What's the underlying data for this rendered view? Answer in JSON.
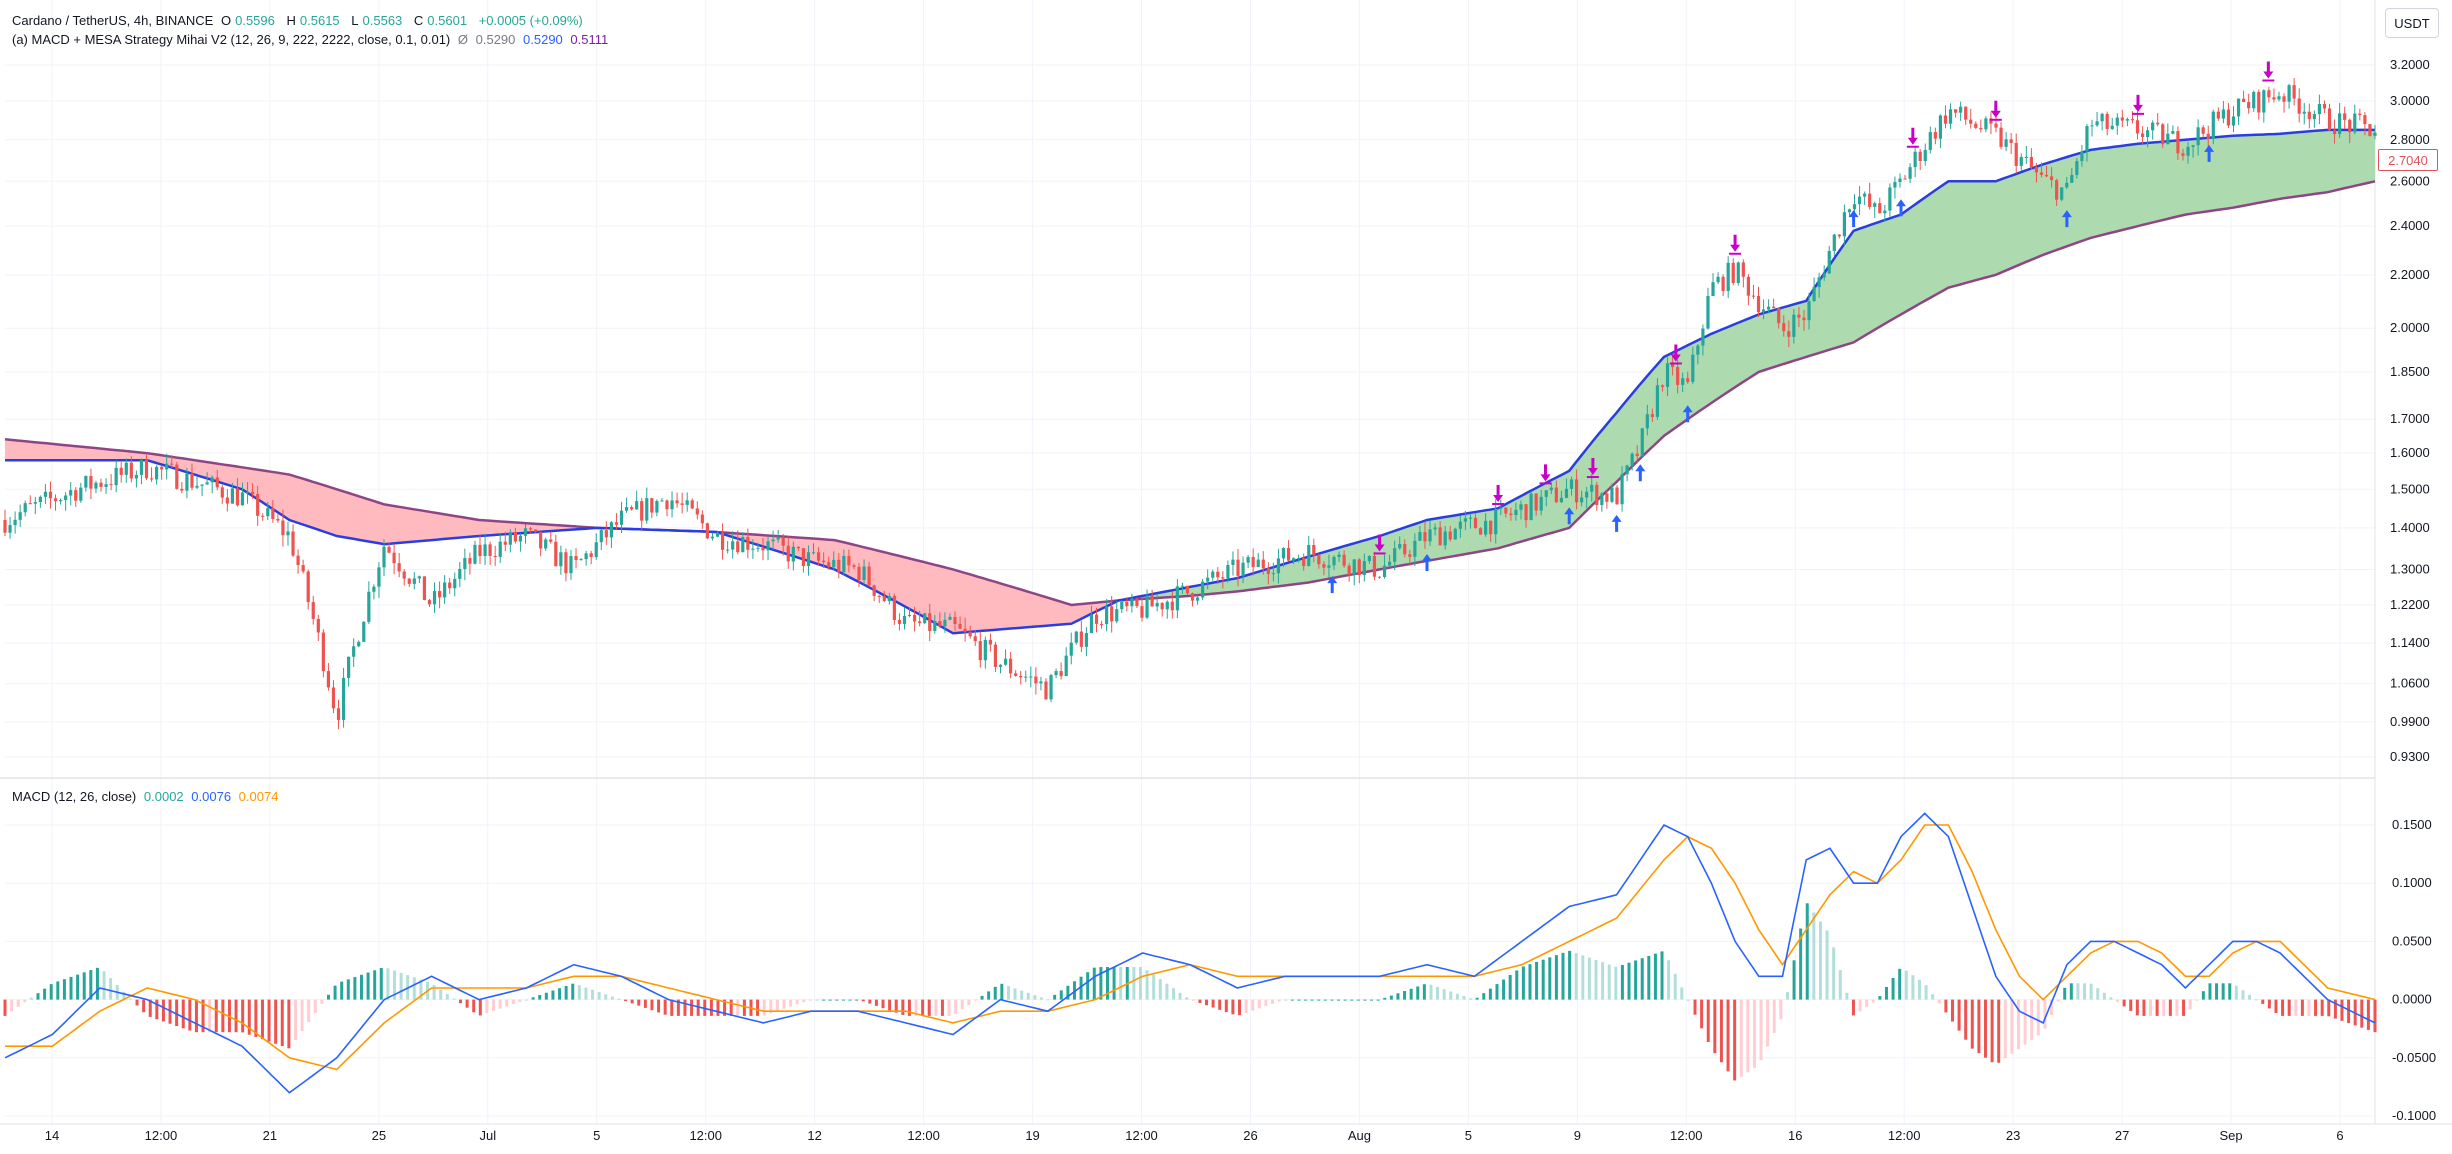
{
  "legend": {
    "symbol": "Cardano / TetherUS, 4h, BINANCE",
    "open_label": "O",
    "open": "0.5596",
    "high_label": "H",
    "high": "0.5615",
    "low_label": "L",
    "low": "0.5563",
    "close_label": "C",
    "close": "0.5601",
    "change": "+0.0005 (+0.09%)",
    "indicator": "(a) MACD + MESA Strategy Mihai V2 (12, 26, 9, 222, 2222, close, 0.1, 0.01)",
    "indicator_values": [
      "0.5290",
      "0.5290",
      "0.5111"
    ],
    "indicator_symbol": "Ø",
    "macd_title": "MACD (12, 26, close)",
    "macd_values": [
      "0.0002",
      "0.0076",
      "0.0074"
    ]
  },
  "currency_button": "USDT",
  "last_price_tag": "2.7040",
  "colors": {
    "up": "#26a69a",
    "down": "#ef5350",
    "mama": "#2a3de0",
    "fama": "#8e4585",
    "cloud_bull": "#a5d6a7",
    "cloud_bear": "#ffb3b8",
    "macd_line": "#2962ff",
    "signal_line": "#ff9800",
    "buy_arrow": "#2962ff",
    "sell_arrow": "#c800c8"
  },
  "chart_data": [
    {
      "type": "candlestick",
      "y_axis_labels": [
        "3.2000",
        "3.0000",
        "2.8000",
        "2.6000",
        "2.4000",
        "2.2000",
        "2.0000",
        "1.8500",
        "1.7000",
        "1.6000",
        "1.5000",
        "1.4000",
        "1.3000",
        "1.2200",
        "1.1400",
        "1.0600",
        "0.9900",
        "0.9300"
      ],
      "y_axis_scale": "log",
      "x_axis_labels": [
        "14",
        "12:00",
        "21",
        "25",
        "Jul",
        "5",
        "12:00",
        "12",
        "12:00",
        "19",
        "12:00",
        "26",
        "Aug",
        "5",
        "9",
        "12:00",
        "16",
        "12:00",
        "23",
        "27",
        "Sep",
        "6"
      ],
      "price_path": {
        "x": [
          0,
          0.03,
          0.06,
          0.1,
          0.12,
          0.14,
          0.16,
          0.18,
          0.2,
          0.22,
          0.24,
          0.26,
          0.28,
          0.3,
          0.32,
          0.34,
          0.36,
          0.38,
          0.4,
          0.42,
          0.44,
          0.46,
          0.48,
          0.5,
          0.52,
          0.55,
          0.58,
          0.6,
          0.63,
          0.66,
          0.68,
          0.69,
          0.7,
          0.71,
          0.72,
          0.73,
          0.74,
          0.75,
          0.76,
          0.78,
          0.79,
          0.8,
          0.82,
          0.84,
          0.86,
          0.87,
          0.88,
          0.9,
          0.92,
          0.94,
          0.96,
          0.98,
          1
        ],
        "y": [
          1.42,
          1.5,
          1.56,
          1.48,
          1.38,
          1.0,
          1.36,
          1.22,
          1.34,
          1.38,
          1.3,
          1.42,
          1.48,
          1.38,
          1.36,
          1.32,
          1.3,
          1.18,
          1.17,
          1.1,
          1.05,
          1.2,
          1.21,
          1.25,
          1.3,
          1.34,
          1.3,
          1.38,
          1.42,
          1.5,
          1.48,
          1.62,
          1.85,
          1.8,
          2.15,
          2.22,
          2.1,
          2.0,
          2.05,
          2.55,
          2.45,
          2.6,
          2.95,
          2.82,
          2.6,
          2.55,
          2.88,
          2.85,
          2.78,
          2.95,
          3.05,
          2.9,
          2.85
        ]
      },
      "mama": {
        "x": [
          0,
          0.06,
          0.1,
          0.12,
          0.14,
          0.16,
          0.2,
          0.25,
          0.3,
          0.35,
          0.4,
          0.45,
          0.47,
          0.5,
          0.52,
          0.55,
          0.58,
          0.6,
          0.63,
          0.66,
          0.68,
          0.7,
          0.72,
          0.74,
          0.76,
          0.78,
          0.8,
          0.82,
          0.84,
          0.86,
          0.88,
          0.9,
          0.92,
          0.94,
          0.96,
          0.98,
          1
        ],
        "y": [
          1.58,
          1.58,
          1.5,
          1.42,
          1.38,
          1.36,
          1.38,
          1.4,
          1.39,
          1.3,
          1.16,
          1.18,
          1.23,
          1.26,
          1.28,
          1.33,
          1.38,
          1.42,
          1.45,
          1.55,
          1.72,
          1.9,
          1.98,
          2.05,
          2.1,
          2.38,
          2.45,
          2.6,
          2.6,
          2.68,
          2.75,
          2.78,
          2.8,
          2.82,
          2.83,
          2.85,
          2.85
        ]
      },
      "fama": {
        "x": [
          0,
          0.06,
          0.1,
          0.12,
          0.14,
          0.16,
          0.2,
          0.25,
          0.3,
          0.35,
          0.4,
          0.45,
          0.47,
          0.5,
          0.52,
          0.55,
          0.58,
          0.6,
          0.63,
          0.66,
          0.68,
          0.7,
          0.72,
          0.74,
          0.76,
          0.78,
          0.8,
          0.82,
          0.84,
          0.86,
          0.88,
          0.9,
          0.92,
          0.94,
          0.96,
          0.98,
          1
        ],
        "y": [
          1.64,
          1.6,
          1.56,
          1.54,
          1.5,
          1.46,
          1.42,
          1.4,
          1.39,
          1.37,
          1.3,
          1.22,
          1.23,
          1.24,
          1.25,
          1.27,
          1.3,
          1.32,
          1.35,
          1.4,
          1.52,
          1.65,
          1.75,
          1.85,
          1.9,
          1.95,
          2.05,
          2.15,
          2.2,
          2.28,
          2.35,
          2.4,
          2.45,
          2.48,
          2.52,
          2.55,
          2.6
        ]
      },
      "buy_signals_x": [
        0.56,
        0.6,
        0.66,
        0.68,
        0.69,
        0.71,
        0.78,
        0.8,
        0.87,
        0.93
      ],
      "sell_signals_x": [
        0.58,
        0.63,
        0.65,
        0.67,
        0.705,
        0.73,
        0.805,
        0.84,
        0.9,
        0.955
      ]
    },
    {
      "type": "line",
      "title": "MACD (12, 26, close)",
      "y_axis_labels": [
        "0.1500",
        "0.1000",
        "0.0500",
        "0.0000",
        "-0.0500",
        "-0.1000"
      ],
      "ylim": [
        -0.1,
        0.17
      ],
      "x": [
        0,
        0.02,
        0.04,
        0.06,
        0.08,
        0.1,
        0.12,
        0.14,
        0.16,
        0.18,
        0.2,
        0.22,
        0.24,
        0.26,
        0.28,
        0.3,
        0.32,
        0.34,
        0.36,
        0.38,
        0.4,
        0.42,
        0.44,
        0.46,
        0.48,
        0.5,
        0.52,
        0.54,
        0.56,
        0.58,
        0.6,
        0.62,
        0.64,
        0.66,
        0.68,
        0.7,
        0.71,
        0.72,
        0.73,
        0.74,
        0.75,
        0.76,
        0.77,
        0.78,
        0.79,
        0.8,
        0.81,
        0.82,
        0.83,
        0.84,
        0.85,
        0.86,
        0.87,
        0.88,
        0.89,
        0.9,
        0.91,
        0.92,
        0.93,
        0.94,
        0.95,
        0.96,
        0.97,
        0.98,
        1
      ],
      "series": [
        {
          "values": [
            -0.05,
            -0.03,
            0.01,
            0.0,
            -0.02,
            -0.04,
            -0.08,
            -0.05,
            0.0,
            0.02,
            0.0,
            0.01,
            0.03,
            0.02,
            0.0,
            -0.01,
            -0.02,
            -0.01,
            -0.01,
            -0.02,
            -0.03,
            0.0,
            -0.01,
            0.02,
            0.04,
            0.03,
            0.01,
            0.02,
            0.02,
            0.02,
            0.03,
            0.02,
            0.05,
            0.08,
            0.09,
            0.15,
            0.14,
            0.1,
            0.05,
            0.02,
            0.02,
            0.12,
            0.13,
            0.1,
            0.1,
            0.14,
            0.16,
            0.14,
            0.08,
            0.02,
            -0.01,
            -0.02,
            0.03,
            0.05,
            0.05,
            0.04,
            0.03,
            0.01,
            0.03,
            0.05,
            0.05,
            0.04,
            0.02,
            0.0,
            -0.02
          ]
        },
        {
          "values": [
            -0.04,
            -0.04,
            -0.01,
            0.01,
            0.0,
            -0.02,
            -0.05,
            -0.06,
            -0.02,
            0.01,
            0.01,
            0.01,
            0.02,
            0.02,
            0.01,
            0.0,
            -0.01,
            -0.01,
            -0.01,
            -0.01,
            -0.02,
            -0.01,
            -0.01,
            0.0,
            0.02,
            0.03,
            0.02,
            0.02,
            0.02,
            0.02,
            0.02,
            0.02,
            0.03,
            0.05,
            0.07,
            0.12,
            0.14,
            0.13,
            0.1,
            0.06,
            0.03,
            0.06,
            0.09,
            0.11,
            0.1,
            0.12,
            0.15,
            0.15,
            0.11,
            0.06,
            0.02,
            0.0,
            0.02,
            0.04,
            0.05,
            0.05,
            0.04,
            0.02,
            0.02,
            0.04,
            0.05,
            0.05,
            0.03,
            0.01,
            0.0
          ]
        }
      ]
    }
  ]
}
